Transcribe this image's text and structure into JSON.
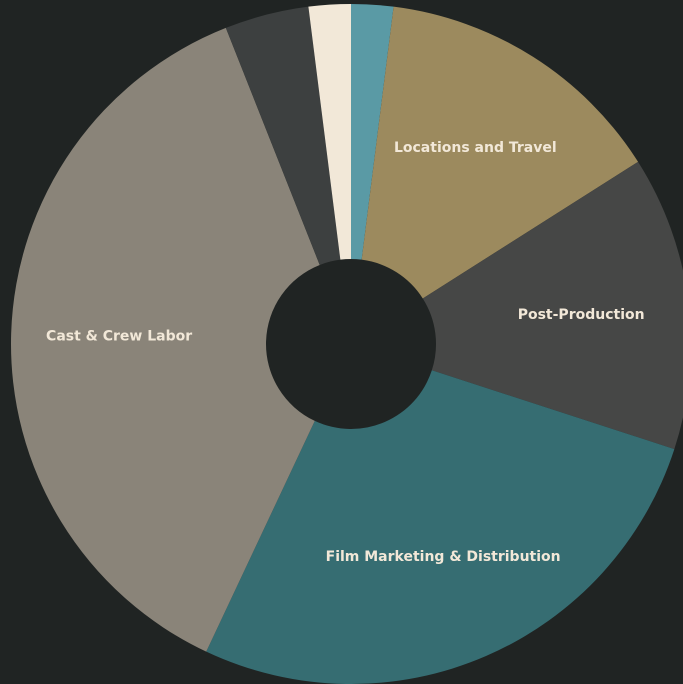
{
  "chart_data": {
    "type": "donut",
    "categories": [
      null,
      "Locations and Travel",
      "Post-Production",
      "Film Marketing & Distribution",
      "Cast & Crew Labor",
      null,
      null
    ],
    "values": [
      2,
      14,
      14,
      27,
      37,
      4,
      2
    ],
    "colors": [
      "#5a9aa5",
      "#9c8a5e",
      "#464746",
      "#366d72",
      "#8a8479",
      "#3d4040",
      "#f2e8d8"
    ]
  }
}
